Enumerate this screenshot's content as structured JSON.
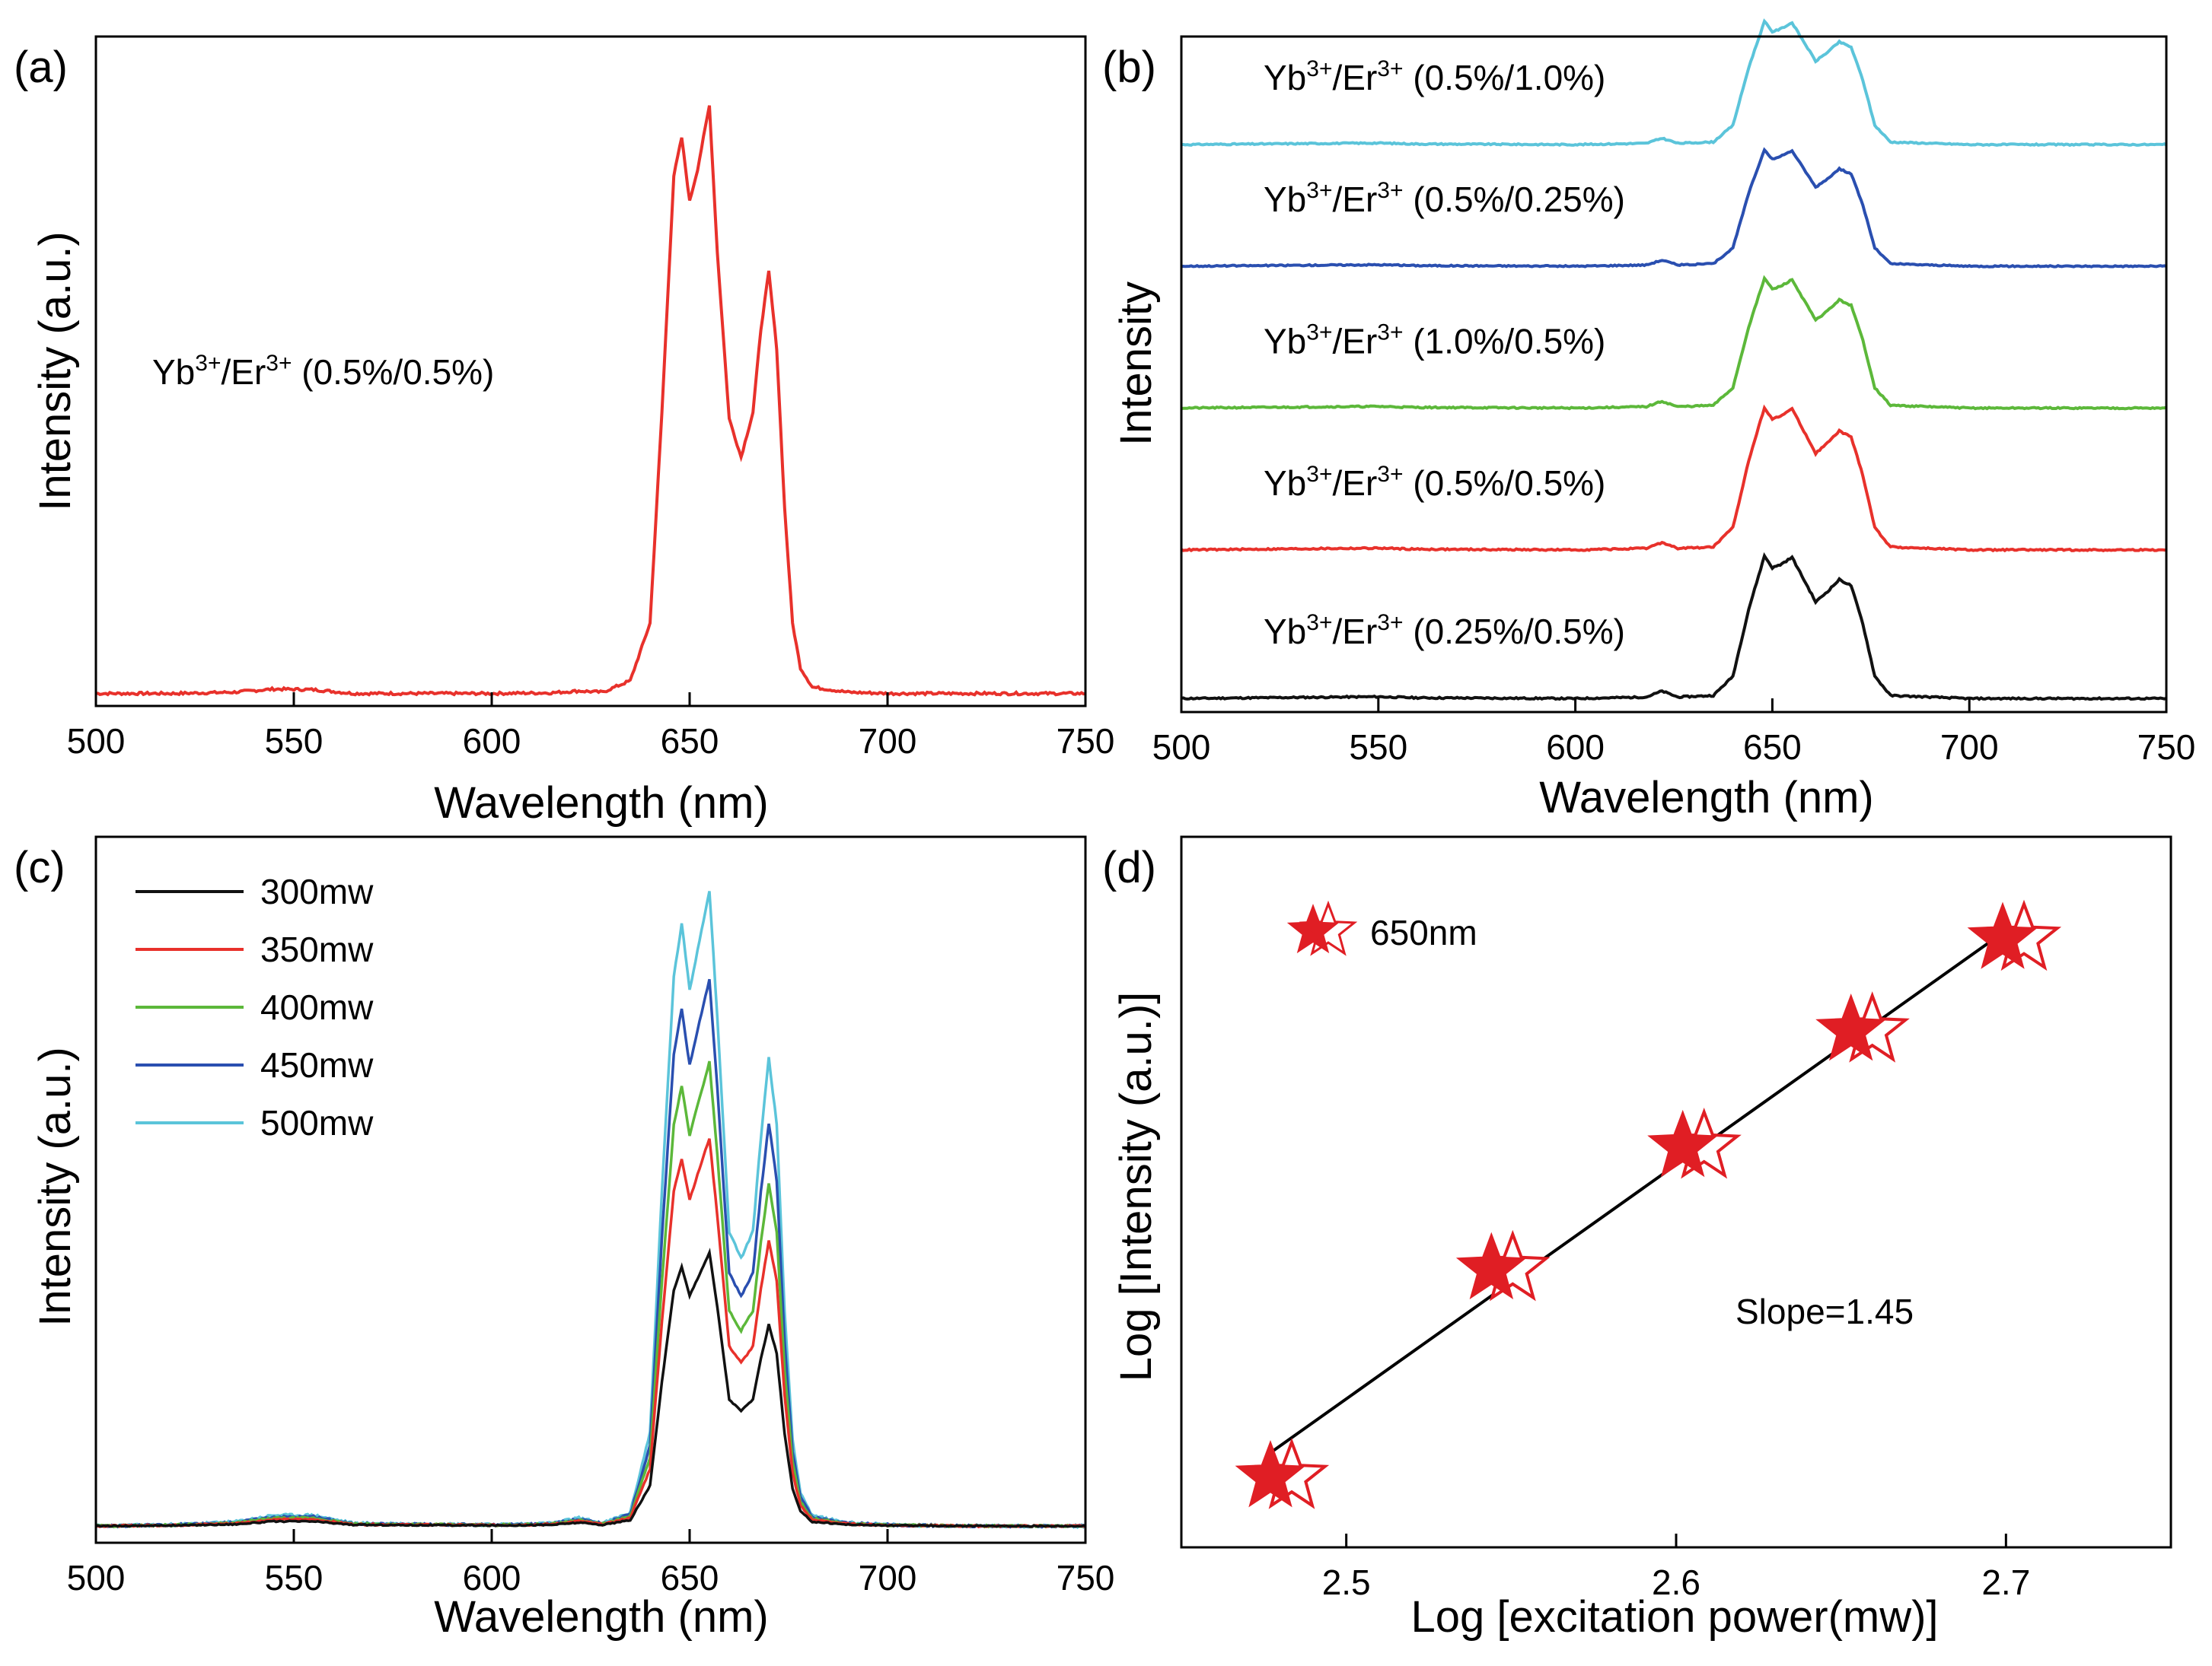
{
  "chart_data": [
    {
      "panel": "(a)",
      "type": "line",
      "xlabel": "Wavelength (nm)",
      "ylabel": "Intensity (a.u.)",
      "xlim": [
        500,
        750
      ],
      "ylim": [
        0,
        1.0
      ],
      "xticks": [
        500,
        550,
        600,
        650,
        700,
        750
      ],
      "annotation": {
        "prefix": "Yb",
        "sup1": "3+",
        "mid": "/Er",
        "sup2": "3+",
        "suffix": " (0.5%/0.5%)"
      },
      "series": [
        {
          "name": "Yb3+/Er3+ (0.5%/0.5%)",
          "color": "#e8312b",
          "x": [
            500,
            520,
            535,
            545,
            555,
            565,
            600,
            615,
            622,
            628,
            635,
            640,
            643,
            646,
            648,
            650,
            652,
            655,
            657,
            660,
            663,
            666,
            668,
            670,
            672,
            674,
            676,
            678,
            681,
            690,
            700,
            720,
            750
          ],
          "y": [
            0.01,
            0.01,
            0.012,
            0.017,
            0.016,
            0.01,
            0.01,
            0.011,
            0.014,
            0.012,
            0.03,
            0.12,
            0.45,
            0.82,
            0.88,
            0.78,
            0.83,
            0.93,
            0.7,
            0.44,
            0.38,
            0.45,
            0.58,
            0.67,
            0.55,
            0.3,
            0.12,
            0.05,
            0.02,
            0.012,
            0.01,
            0.01,
            0.01
          ]
        }
      ]
    },
    {
      "panel": "(b)",
      "type": "line",
      "xlabel": "Wavelength (nm)",
      "ylabel": "Intensity",
      "xlim": [
        500,
        750
      ],
      "xticks": [
        500,
        550,
        600,
        650,
        700,
        750
      ],
      "series": [
        {
          "name": "0.25%/0.5%",
          "color": "#111111",
          "baseline": 0.02,
          "scale": 0.22,
          "label": {
            "prefix": "Yb",
            "sup1": "3+",
            "mid": "/Er",
            "sup2": "3+",
            "suffix": " (0.25%/0.5%)"
          }
        },
        {
          "name": "0.5%/0.5%",
          "color": "#e8312b",
          "baseline": 0.24,
          "scale": 0.22,
          "label": {
            "prefix": "Yb",
            "sup1": "3+",
            "mid": "/Er",
            "sup2": "3+",
            "suffix": " (0.5%/0.5%)"
          }
        },
        {
          "name": "1.0%/0.5%",
          "color": "#5cb83a",
          "baseline": 0.45,
          "scale": 0.2,
          "label": {
            "prefix": "Yb",
            "sup1": "3+",
            "mid": "/Er",
            "sup2": "3+",
            "suffix": " (1.0%/0.5%)"
          }
        },
        {
          "name": "0.5%/0.25%",
          "color": "#2a4fb0",
          "baseline": 0.66,
          "scale": 0.18,
          "label": {
            "prefix": "Yb",
            "sup1": "3+",
            "mid": "/Er",
            "sup2": "3+",
            "suffix": " (0.5%/0.25%)"
          }
        },
        {
          "name": "0.5%/1.0%",
          "color": "#5bc4da",
          "baseline": 0.84,
          "scale": 0.19,
          "label": {
            "prefix": "Yb",
            "sup1": "3+",
            "mid": "/Er",
            "sup2": "3+",
            "suffix": " (0.5%/1.0%)"
          }
        }
      ],
      "profile": {
        "x": [
          500,
          540,
          550,
          560,
          600,
          618,
          622,
          626,
          635,
          640,
          644,
          648,
          650,
          652,
          655,
          658,
          661,
          664,
          667,
          670,
          673,
          676,
          680,
          700,
          750
        ],
        "y": [
          0.0,
          0.01,
          0.012,
          0.005,
          0.0,
          0.01,
          0.05,
          0.01,
          0.02,
          0.15,
          0.6,
          0.96,
          0.88,
          0.9,
          0.95,
          0.8,
          0.65,
          0.72,
          0.8,
          0.76,
          0.5,
          0.15,
          0.02,
          0.0,
          0.0
        ]
      }
    },
    {
      "panel": "(c)",
      "type": "line",
      "xlabel": "Wavelength (nm)",
      "ylabel": "Intensity (a.u.)",
      "xlim": [
        500,
        750
      ],
      "xticks": [
        500,
        550,
        600,
        650,
        700,
        750
      ],
      "legend": "top-left",
      "base_x": [
        500,
        520,
        535,
        545,
        555,
        565,
        600,
        615,
        622,
        628,
        635,
        640,
        643,
        646,
        648,
        650,
        652,
        655,
        657,
        660,
        663,
        666,
        668,
        670,
        672,
        674,
        676,
        678,
        681,
        690,
        700,
        720,
        750
      ],
      "base_y": [
        0.0,
        0.002,
        0.006,
        0.016,
        0.016,
        0.004,
        0.002,
        0.004,
        0.012,
        0.004,
        0.02,
        0.14,
        0.5,
        0.82,
        0.9,
        0.8,
        0.86,
        0.95,
        0.76,
        0.44,
        0.4,
        0.44,
        0.58,
        0.7,
        0.6,
        0.32,
        0.13,
        0.05,
        0.015,
        0.005,
        0.002,
        0.0,
        0.0
      ],
      "series": [
        {
          "name": "300mw",
          "color": "#111111",
          "peak": 0.43
        },
        {
          "name": "350mw",
          "color": "#e8312b",
          "peak": 0.61
        },
        {
          "name": "400mw",
          "color": "#5cb83a",
          "peak": 0.73
        },
        {
          "name": "450mw",
          "color": "#2a4fb0",
          "peak": 0.86
        },
        {
          "name": "500mw",
          "color": "#5bc4da",
          "peak": 1.0
        }
      ]
    },
    {
      "panel": "(d)",
      "type": "scatter",
      "xlabel": "Log [excitation power(mw)]",
      "ylabel": "Log [Intensity (a.u.)]",
      "xlim": [
        2.45,
        2.75
      ],
      "ylim": [
        0,
        1
      ],
      "xticks": [
        "2.5",
        "2.6",
        "2.7"
      ],
      "legend_label": "650nm",
      "annotation": "Slope=1.45",
      "marker_color": "#e01e24",
      "points": {
        "x": [
          2.477,
          2.544,
          2.602,
          2.653,
          2.699
        ],
        "y": [
          0.04,
          0.38,
          0.58,
          0.77,
          0.92
        ]
      },
      "fit": {
        "x": [
          2.477,
          2.699
        ],
        "y": [
          0.08,
          0.93
        ]
      }
    }
  ]
}
